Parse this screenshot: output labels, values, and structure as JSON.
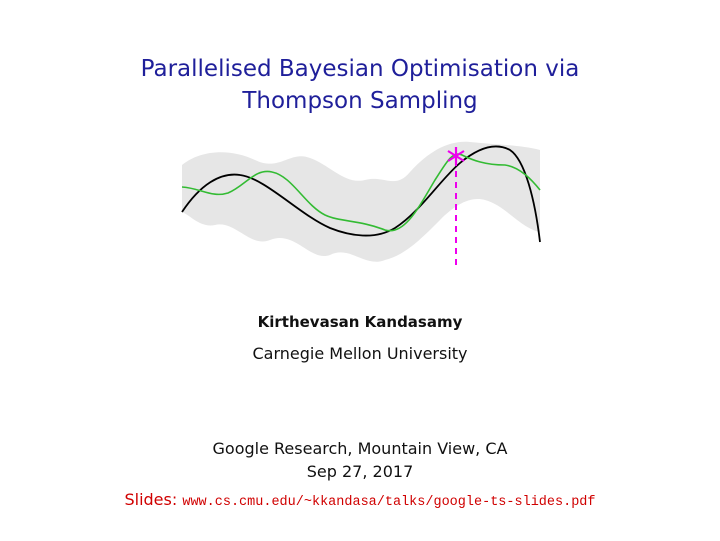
{
  "title": [
    "Parallelised Bayesian Optimisation via",
    "Thompson Sampling"
  ],
  "author": "Kirthevasan Kandasamy",
  "affiliation": "Carnegie Mellon University",
  "venue": "Google Research,  Mountain View, CA",
  "date": "Sep 27, 2017",
  "slides": {
    "label": "Slides:",
    "url": "www.cs.cmu.edu/~kkandasa/talks/google-ts-slides.pdf"
  }
}
